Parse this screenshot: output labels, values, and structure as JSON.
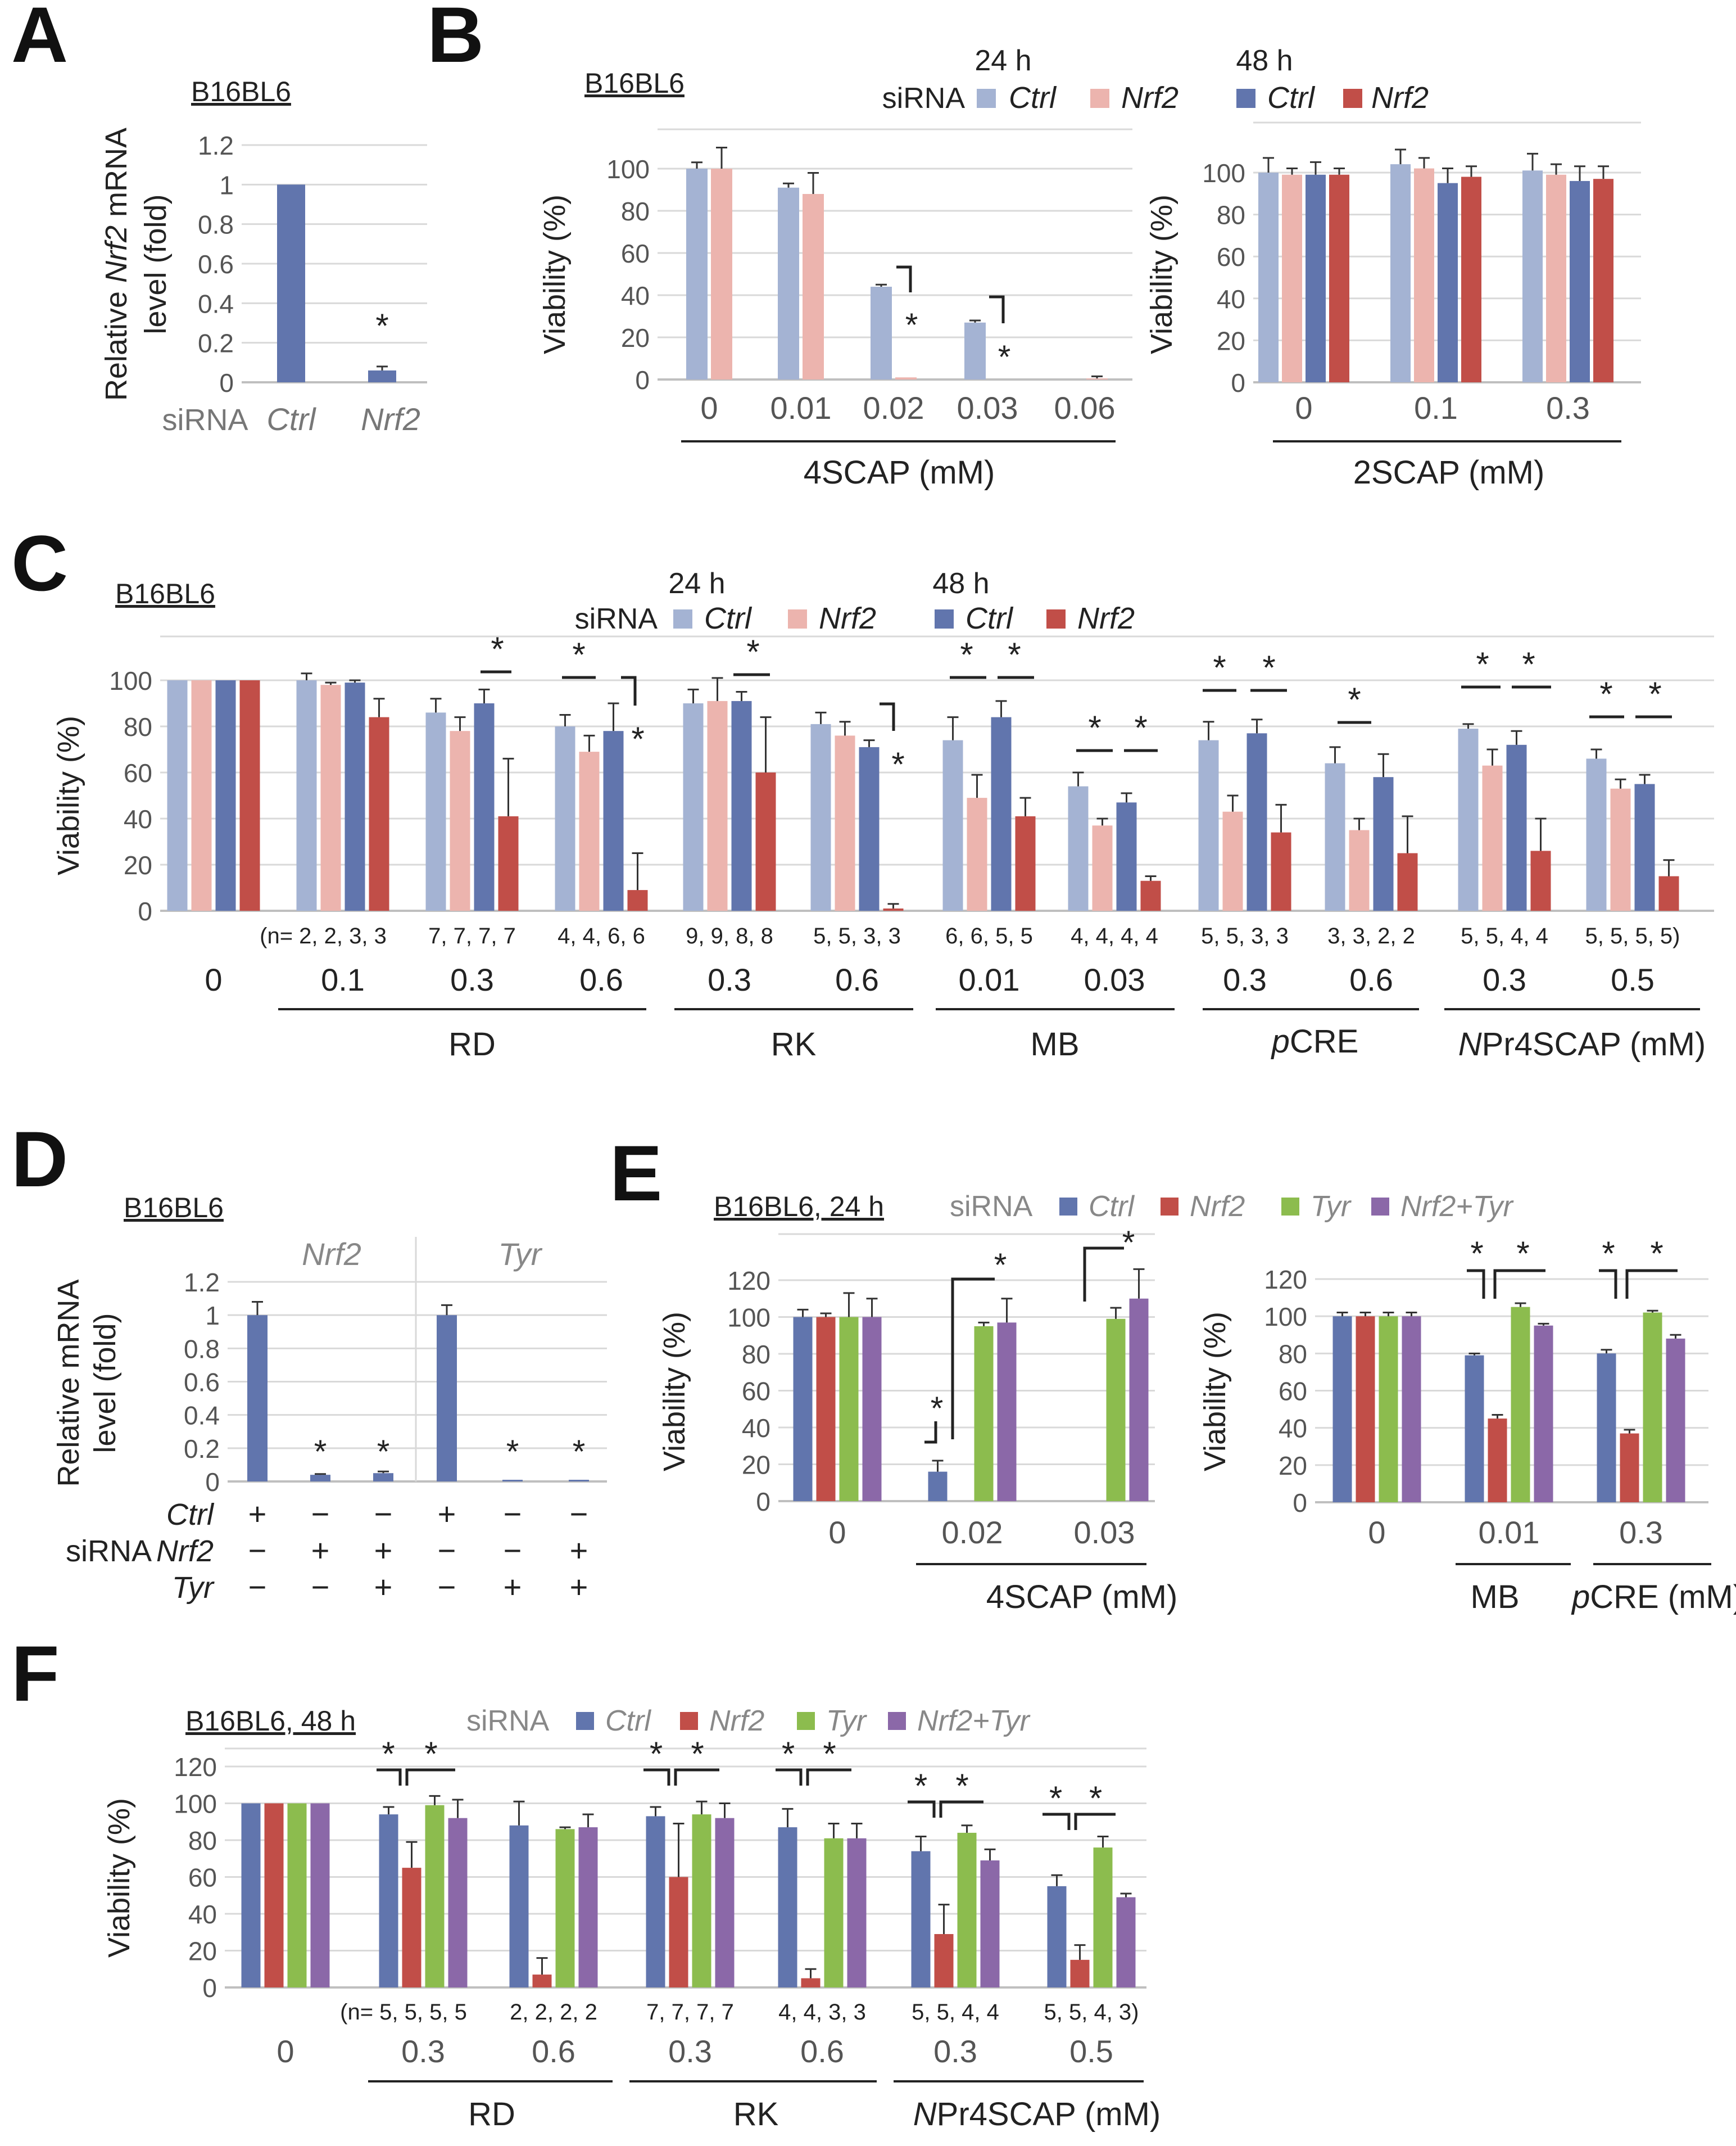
{
  "colors": {
    "ctrl24": "#a4b3d3",
    "nrf24": "#ecb4ae",
    "ctrl48": "#6175ad",
    "nrf48": "#c14e48",
    "ctrl": "#6175ad",
    "nrf2": "#c14e48",
    "tyr": "#8cbc4e",
    "nrf2tyr": "#8b68a8",
    "grid": "#d9d9d9",
    "axis": "#8c8c8c",
    "text": "#222222"
  },
  "chart_data": [
    {
      "panel": "A",
      "type": "bar",
      "cell_line": "B16BL6",
      "ylabel": "Relative Nrf2 mRNA level (fold)",
      "ylim": [
        0,
        1.2
      ],
      "yticks": [
        "0",
        "0.2",
        "0.4",
        "0.6",
        "0.8",
        "1",
        "1.2"
      ],
      "xlabel_prefix": "siRNA",
      "categories": [
        "Ctrl",
        "Nrf2"
      ],
      "values": [
        1.0,
        0.06
      ],
      "errors": [
        0,
        0.02
      ],
      "significance": [
        "",
        "*"
      ]
    },
    {
      "panel": "B-left",
      "type": "bar",
      "cell_line": "B16BL6",
      "ylabel": "Viability (%)",
      "ylim": [
        0,
        100
      ],
      "yticks": [
        "0",
        "20",
        "40",
        "60",
        "80",
        "100"
      ],
      "legend": {
        "title": "siRNA",
        "time": "24 h",
        "series": [
          "Ctrl",
          "Nrf2"
        ]
      },
      "xlabel": "4SCAP",
      "unit": "(mM)",
      "categories": [
        "0",
        "0.01",
        "0.02",
        "0.03",
        "0.06"
      ],
      "series": [
        {
          "name": "Ctrl 24 h",
          "values": [
            100,
            91,
            44,
            27,
            null
          ],
          "errors": [
            3,
            2,
            1,
            1,
            null
          ]
        },
        {
          "name": "Nrf2 24 h",
          "values": [
            100,
            88,
            1,
            0,
            0.5
          ],
          "errors": [
            10,
            10,
            0,
            0,
            1
          ]
        }
      ],
      "significance": [
        "",
        "",
        "*",
        "*",
        ""
      ]
    },
    {
      "panel": "B-right",
      "type": "bar",
      "ylabel": "Viability (%)",
      "ylim": [
        0,
        100
      ],
      "yticks": [
        "0",
        "20",
        "40",
        "60",
        "80",
        "100"
      ],
      "legend": {
        "time": "48 h",
        "series": [
          "Ctrl",
          "Nrf2"
        ]
      },
      "xlabel": "2SCAP",
      "unit": "(mM)",
      "categories": [
        "0",
        "0.1",
        "0.3"
      ],
      "series": [
        {
          "name": "Ctrl 24 h",
          "values": [
            100,
            104,
            101
          ],
          "errors": [
            7,
            7,
            8
          ]
        },
        {
          "name": "Nrf2 24 h",
          "values": [
            99,
            102,
            99
          ],
          "errors": [
            3,
            5,
            5
          ]
        },
        {
          "name": "Ctrl 48 h",
          "values": [
            99,
            95,
            96
          ],
          "errors": [
            6,
            7,
            7
          ]
        },
        {
          "name": "Nrf2 48 h",
          "values": [
            99,
            98,
            97
          ],
          "errors": [
            3,
            5,
            6
          ]
        }
      ]
    },
    {
      "panel": "C",
      "type": "bar",
      "cell_line": "B16BL6",
      "ylabel": "Viability (%)",
      "ylim": [
        0,
        100
      ],
      "yticks": [
        "0",
        "20",
        "40",
        "60",
        "80",
        "100"
      ],
      "legend": {
        "title": "siRNA",
        "series": [
          {
            "time": "24 h",
            "names": [
              "Ctrl",
              "Nrf2"
            ]
          },
          {
            "time": "48 h",
            "names": [
              "Ctrl",
              "Nrf2"
            ]
          }
        ]
      },
      "categories": [
        "0",
        "0.1",
        "0.3",
        "0.6",
        "0.3",
        "0.6",
        "0.01",
        "0.03",
        "0.3",
        "0.6",
        "0.3",
        "0.5"
      ],
      "n_labels": [
        "(n= 2, 2, 3, 3",
        "7, 7, 7, 7",
        "4, 4, 6, 6",
        "9, 9, 8, 8",
        "5, 5, 3, 3",
        "6, 6, 5, 5",
        "4, 4, 4, 4",
        "5, 5, 3, 3",
        "3, 3, 2, 2",
        "5, 5, 4, 4",
        "5, 5, 5, 5)"
      ],
      "groups": [
        {
          "label": "RD"
        },
        {
          "label": "RK"
        },
        {
          "label": "MB"
        },
        {
          "label_italic": "p",
          "label": "CRE"
        },
        {
          "label_italic": "N",
          "label": "Pr4SCAP"
        }
      ],
      "unit": "(mM)",
      "series": [
        {
          "name": "Ctrl 24 h",
          "values": [
            100,
            100,
            86,
            80,
            90,
            81,
            74,
            54,
            74,
            64,
            79,
            66
          ],
          "errors": [
            0,
            3,
            6,
            5,
            6,
            5,
            10,
            6,
            8,
            7,
            2,
            4
          ]
        },
        {
          "name": "Nrf2 24 h",
          "values": [
            100,
            98,
            78,
            69,
            91,
            76,
            49,
            37,
            43,
            35,
            63,
            53
          ],
          "errors": [
            0,
            1,
            6,
            7,
            10,
            6,
            10,
            3,
            7,
            5,
            7,
            4
          ]
        },
        {
          "name": "Ctrl 48 h",
          "values": [
            100,
            99,
            90,
            78,
            91,
            71,
            84,
            47,
            77,
            58,
            72,
            55
          ],
          "errors": [
            0,
            1,
            6,
            12,
            4,
            3,
            7,
            4,
            6,
            10,
            6,
            4
          ]
        },
        {
          "name": "Nrf2 48 h",
          "values": [
            100,
            84,
            41,
            9,
            60,
            1,
            41,
            13,
            34,
            25,
            26,
            15
          ],
          "errors": [
            0,
            8,
            25,
            16,
            24,
            2,
            8,
            2,
            12,
            16,
            14,
            7
          ]
        }
      ]
    },
    {
      "panel": "D",
      "type": "bar",
      "cell_line": "B16BL6",
      "ylabel": "Relative mRNA level (fold)",
      "ylim": [
        0,
        1.2
      ],
      "yticks": [
        "0",
        "0.2",
        "0.4",
        "0.6",
        "0.8",
        "1",
        "1.2"
      ],
      "subtitles": [
        "Nrf2",
        "Tyr"
      ],
      "row_prefix": "siRNA",
      "rows": [
        {
          "label": "Ctrl",
          "values": [
            "+",
            "−",
            "−",
            "+",
            "−",
            "−"
          ]
        },
        {
          "label": "Nrf2",
          "values": [
            "−",
            "+",
            "+",
            "−",
            "−",
            "+"
          ]
        },
        {
          "label": "Tyr",
          "values": [
            "−",
            "−",
            "+",
            "−",
            "+",
            "+"
          ]
        }
      ],
      "values": [
        1.0,
        0.04,
        0.05,
        1.0,
        0.01,
        0.01
      ],
      "errors": [
        0.08,
        0.005,
        0.01,
        0.06,
        0,
        0
      ],
      "significance": [
        "",
        "*",
        "*",
        "",
        "*",
        "*"
      ]
    },
    {
      "panel": "E-left",
      "type": "bar",
      "cell_line": "B16BL6, 24 h",
      "ylabel": "Viability (%)",
      "ylim": [
        0,
        120
      ],
      "yticks": [
        "0",
        "20",
        "40",
        "60",
        "80",
        "100",
        "120"
      ],
      "legend": {
        "title": "siRNA",
        "series": [
          "Ctrl",
          "Nrf2",
          "Tyr",
          "Nrf2+Tyr"
        ]
      },
      "xlabel": "4SCAP",
      "unit": "(mM)",
      "categories": [
        "0",
        "0.02",
        "0.03"
      ],
      "series": [
        {
          "name": "Ctrl",
          "values": [
            100,
            16,
            0
          ],
          "errors": [
            4,
            6,
            0
          ]
        },
        {
          "name": "Nrf2",
          "values": [
            100,
            0,
            0
          ],
          "errors": [
            2,
            0,
            0
          ]
        },
        {
          "name": "Tyr",
          "values": [
            100,
            95,
            99
          ],
          "errors": [
            13,
            2,
            6
          ]
        },
        {
          "name": "Nrf2+Tyr",
          "values": [
            100,
            97,
            110
          ],
          "errors": [
            10,
            13,
            16
          ]
        }
      ]
    },
    {
      "panel": "E-right",
      "type": "bar",
      "ylabel": "Viability (%)",
      "ylim": [
        0,
        120
      ],
      "yticks": [
        "0",
        "20",
        "40",
        "60",
        "80",
        "100",
        "120"
      ],
      "categories": [
        "0",
        "0.01",
        "0.3"
      ],
      "groups": [
        {
          "label": "MB"
        },
        {
          "label_italic": "p",
          "label": "CRE (mM)"
        }
      ],
      "series": [
        {
          "name": "Ctrl",
          "values": [
            100,
            79,
            80
          ],
          "errors": [
            2,
            1,
            2
          ]
        },
        {
          "name": "Nrf2",
          "values": [
            100,
            45,
            37
          ],
          "errors": [
            2,
            2,
            2
          ]
        },
        {
          "name": "Tyr",
          "values": [
            100,
            105,
            102
          ],
          "errors": [
            2,
            2,
            1
          ]
        },
        {
          "name": "Nrf2+Tyr",
          "values": [
            100,
            95,
            88
          ],
          "errors": [
            2,
            1,
            2
          ]
        }
      ]
    },
    {
      "panel": "F",
      "type": "bar",
      "cell_line": "B16BL6, 48 h",
      "ylabel": "Viability (%)",
      "ylim": [
        0,
        120
      ],
      "yticks": [
        "0",
        "20",
        "40",
        "60",
        "80",
        "100",
        "120"
      ],
      "legend": {
        "title": "siRNA",
        "series": [
          "Ctrl",
          "Nrf2",
          "Tyr",
          "Nrf2+Tyr"
        ]
      },
      "categories": [
        "0",
        "0.3",
        "0.6",
        "0.3",
        "0.6",
        "0.3",
        "0.5"
      ],
      "n_labels": [
        "(n= 5, 5, 5, 5",
        "2, 2, 2, 2",
        "7, 7, 7, 7",
        "4, 4, 3, 3",
        "5, 5, 4, 4",
        "5, 5, 4, 3)"
      ],
      "groups": [
        {
          "label": "RD"
        },
        {
          "label": "RK"
        },
        {
          "label_italic": "N",
          "label": "Pr4SCAP  (mM)"
        }
      ],
      "series": [
        {
          "name": "Ctrl",
          "values": [
            100,
            94,
            88,
            93,
            87,
            74,
            55
          ],
          "errors": [
            0,
            4,
            13,
            5,
            10,
            8,
            6
          ]
        },
        {
          "name": "Nrf2",
          "values": [
            100,
            65,
            7,
            60,
            5,
            29,
            15
          ],
          "errors": [
            0,
            14,
            9,
            29,
            5,
            16,
            8
          ]
        },
        {
          "name": "Tyr",
          "values": [
            100,
            99,
            86,
            94,
            81,
            84,
            76
          ],
          "errors": [
            0,
            5,
            1,
            7,
            8,
            4,
            6
          ]
        },
        {
          "name": "Nrf2+Tyr",
          "values": [
            100,
            92,
            87,
            92,
            81,
            69,
            49
          ],
          "errors": [
            0,
            10,
            7,
            8,
            8,
            6,
            2
          ]
        }
      ]
    }
  ],
  "panel_labels": [
    "A",
    "B",
    "C",
    "D",
    "E",
    "F"
  ]
}
